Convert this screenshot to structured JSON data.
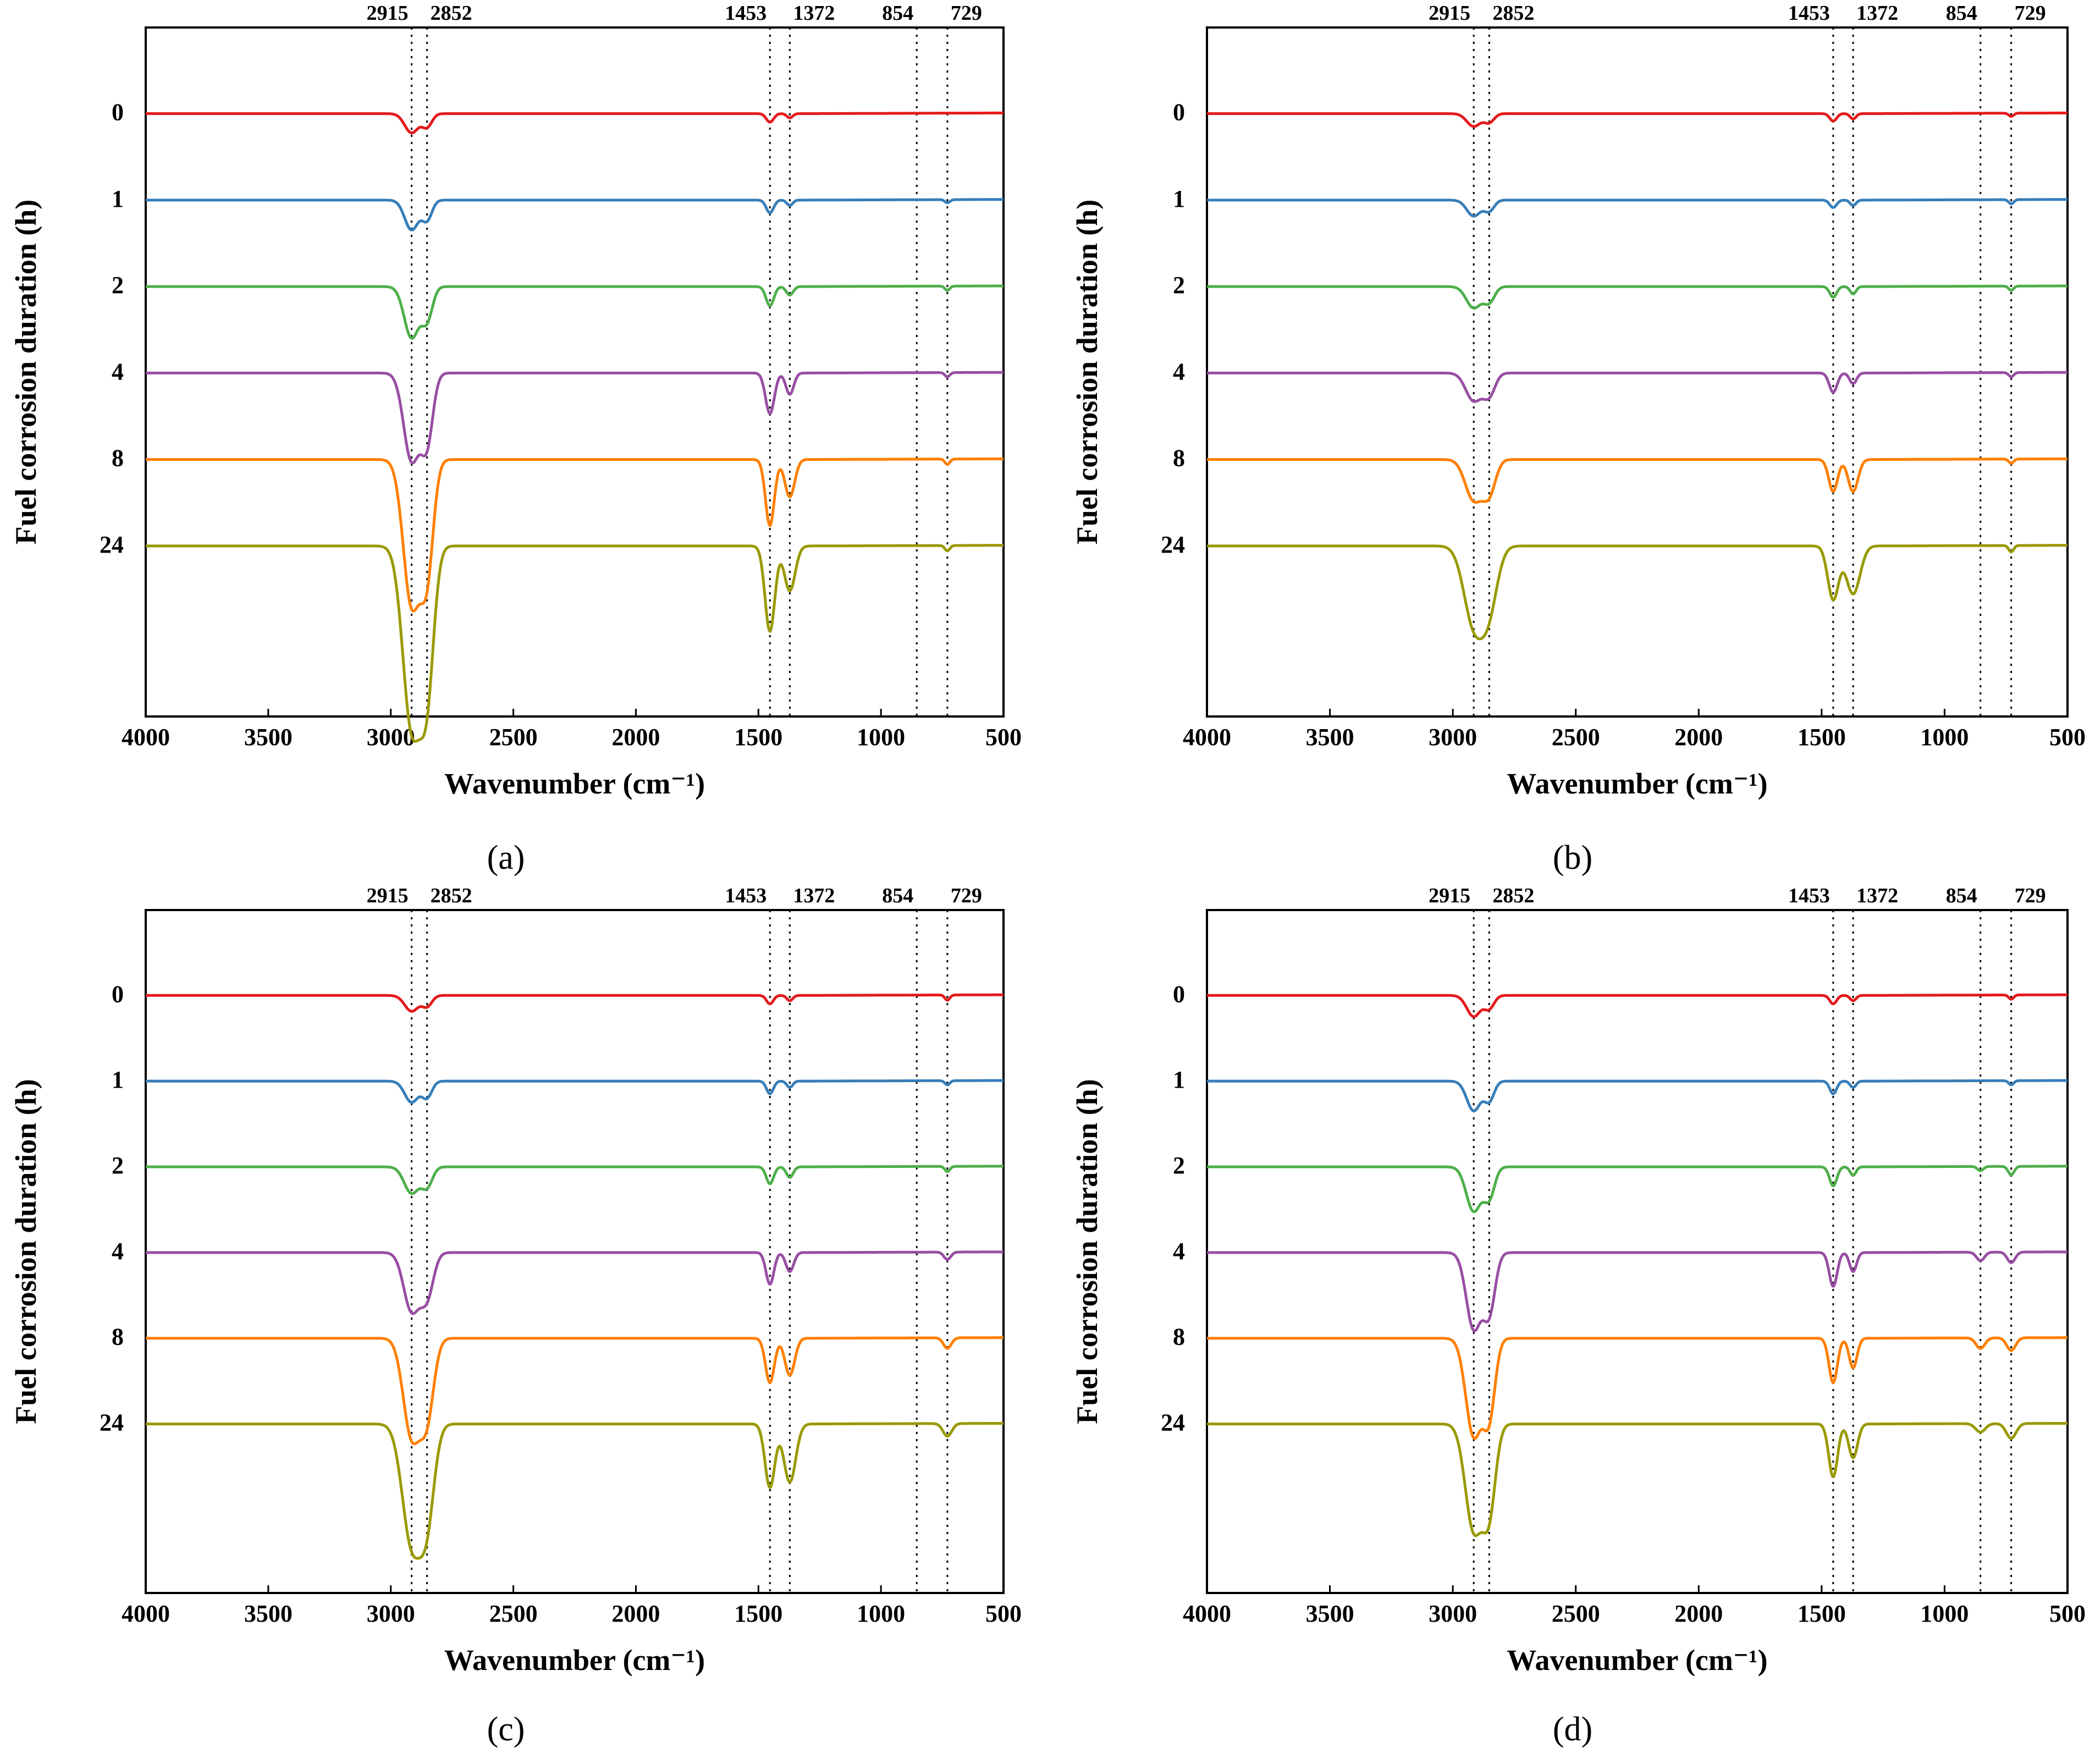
{
  "chart_data": [
    {
      "panel": "a",
      "panel_caption": "(a)",
      "type": "line",
      "xlabel": "Wavenumber (cm⁻¹)",
      "ylabel": "Fuel corrosion duration (h)",
      "xlim": [
        4000,
        500
      ],
      "x_ticks": [
        "4000",
        "3500",
        "3000",
        "2500",
        "2000",
        "1500",
        "1000",
        "500"
      ],
      "peak_markers": [
        2915,
        2852,
        1453,
        1372,
        854,
        729
      ],
      "peak_labels": [
        "2915",
        "2852",
        "1453",
        "1372",
        "854",
        "729"
      ],
      "series": [
        {
          "name": "0",
          "color": "#e41a1c",
          "offset": 0,
          "peaks": [
            {
              "x": 2915,
              "depth": 0.18,
              "w": 28
            },
            {
              "x": 2852,
              "depth": 0.12,
              "w": 20
            },
            {
              "x": 1453,
              "depth": 0.08,
              "w": 15
            },
            {
              "x": 1372,
              "depth": 0.04,
              "w": 12
            }
          ]
        },
        {
          "name": "1",
          "color": "#377eb8",
          "offset": 1,
          "peaks": [
            {
              "x": 2915,
              "depth": 0.28,
              "w": 28
            },
            {
              "x": 2852,
              "depth": 0.18,
              "w": 20
            },
            {
              "x": 1453,
              "depth": 0.12,
              "w": 15
            },
            {
              "x": 1372,
              "depth": 0.05,
              "w": 12
            },
            {
              "x": 729,
              "depth": 0.03,
              "w": 10
            }
          ]
        },
        {
          "name": "2",
          "color": "#4daf4a",
          "offset": 2,
          "peaks": [
            {
              "x": 2915,
              "depth": 0.48,
              "w": 30
            },
            {
              "x": 2852,
              "depth": 0.3,
              "w": 22
            },
            {
              "x": 1453,
              "depth": 0.18,
              "w": 16
            },
            {
              "x": 1372,
              "depth": 0.08,
              "w": 14
            },
            {
              "x": 729,
              "depth": 0.04,
              "w": 10
            }
          ]
        },
        {
          "name": "4",
          "color": "#984ea3",
          "offset": 3,
          "peaks": [
            {
              "x": 2915,
              "depth": 0.82,
              "w": 32
            },
            {
              "x": 2852,
              "depth": 0.62,
              "w": 24
            },
            {
              "x": 1453,
              "depth": 0.38,
              "w": 18
            },
            {
              "x": 1372,
              "depth": 0.2,
              "w": 16
            },
            {
              "x": 729,
              "depth": 0.04,
              "w": 10
            }
          ]
        },
        {
          "name": "8",
          "color": "#ff7f00",
          "offset": 4,
          "peaks": [
            {
              "x": 2915,
              "depth": 1.35,
              "w": 34
            },
            {
              "x": 2852,
              "depth": 1.0,
              "w": 26
            },
            {
              "x": 1453,
              "depth": 0.62,
              "w": 18
            },
            {
              "x": 1372,
              "depth": 0.35,
              "w": 20
            },
            {
              "x": 729,
              "depth": 0.05,
              "w": 10
            }
          ]
        },
        {
          "name": "24",
          "color": "#999900",
          "offset": 5,
          "peaks": [
            {
              "x": 2915,
              "depth": 1.68,
              "w": 36
            },
            {
              "x": 2852,
              "depth": 1.26,
              "w": 28
            },
            {
              "x": 1453,
              "depth": 0.8,
              "w": 20
            },
            {
              "x": 1372,
              "depth": 0.42,
              "w": 22
            },
            {
              "x": 729,
              "depth": 0.05,
              "w": 10
            }
          ]
        }
      ]
    },
    {
      "panel": "b",
      "panel_caption": "(b)",
      "type": "line",
      "xlabel": "Wavenumber (cm⁻¹)",
      "ylabel": "Fuel corrosion duration (h)",
      "xlim": [
        4000,
        500
      ],
      "x_ticks": [
        "4000",
        "3500",
        "3000",
        "2500",
        "2000",
        "1500",
        "1000",
        "500"
      ],
      "peak_markers": [
        2915,
        2852,
        1453,
        1372,
        854,
        729
      ],
      "peak_labels": [
        "2915",
        "2852",
        "1453",
        "1372",
        "854",
        "729"
      ],
      "series": [
        {
          "name": "0",
          "color": "#e41a1c",
          "offset": 0,
          "peaks": [
            {
              "x": 2915,
              "depth": 0.12,
              "w": 28
            },
            {
              "x": 2852,
              "depth": 0.08,
              "w": 20
            },
            {
              "x": 1453,
              "depth": 0.07,
              "w": 14
            },
            {
              "x": 1372,
              "depth": 0.05,
              "w": 12
            },
            {
              "x": 729,
              "depth": 0.03,
              "w": 10
            }
          ]
        },
        {
          "name": "1",
          "color": "#377eb8",
          "offset": 1,
          "peaks": [
            {
              "x": 2915,
              "depth": 0.15,
              "w": 28
            },
            {
              "x": 2852,
              "depth": 0.1,
              "w": 20
            },
            {
              "x": 1453,
              "depth": 0.07,
              "w": 14
            },
            {
              "x": 1372,
              "depth": 0.05,
              "w": 12
            },
            {
              "x": 729,
              "depth": 0.04,
              "w": 10
            }
          ]
        },
        {
          "name": "2",
          "color": "#4daf4a",
          "offset": 2,
          "peaks": [
            {
              "x": 2915,
              "depth": 0.2,
              "w": 30
            },
            {
              "x": 2852,
              "depth": 0.14,
              "w": 22
            },
            {
              "x": 1453,
              "depth": 0.1,
              "w": 14
            },
            {
              "x": 1372,
              "depth": 0.07,
              "w": 12
            },
            {
              "x": 729,
              "depth": 0.04,
              "w": 10
            }
          ]
        },
        {
          "name": "4",
          "color": "#984ea3",
          "offset": 3,
          "peaks": [
            {
              "x": 2915,
              "depth": 0.26,
              "w": 32
            },
            {
              "x": 2852,
              "depth": 0.2,
              "w": 24
            },
            {
              "x": 1453,
              "depth": 0.18,
              "w": 16
            },
            {
              "x": 1372,
              "depth": 0.1,
              "w": 14
            },
            {
              "x": 729,
              "depth": 0.04,
              "w": 10
            }
          ]
        },
        {
          "name": "8",
          "color": "#ff7f00",
          "offset": 4,
          "peaks": [
            {
              "x": 2915,
              "depth": 0.38,
              "w": 34
            },
            {
              "x": 2852,
              "depth": 0.3,
              "w": 26
            },
            {
              "x": 1453,
              "depth": 0.3,
              "w": 18
            },
            {
              "x": 1372,
              "depth": 0.3,
              "w": 20
            },
            {
              "x": 729,
              "depth": 0.04,
              "w": 10
            }
          ]
        },
        {
          "name": "24",
          "color": "#999900",
          "offset": 5,
          "peaks": [
            {
              "x": 2915,
              "depth": 0.72,
              "w": 40
            },
            {
              "x": 2852,
              "depth": 0.52,
              "w": 34
            },
            {
              "x": 1453,
              "depth": 0.5,
              "w": 22
            },
            {
              "x": 1372,
              "depth": 0.45,
              "w": 28
            },
            {
              "x": 729,
              "depth": 0.06,
              "w": 10
            }
          ]
        }
      ]
    },
    {
      "panel": "c",
      "panel_caption": "(c)",
      "type": "line",
      "xlabel": "Wavenumber (cm⁻¹)",
      "ylabel": "Fuel corrosion duration (h)",
      "xlim": [
        4000,
        500
      ],
      "x_ticks": [
        "4000",
        "3500",
        "3000",
        "2500",
        "2000",
        "1500",
        "1000",
        "500"
      ],
      "peak_markers": [
        2915,
        2852,
        1453,
        1372,
        854,
        729
      ],
      "peak_labels": [
        "2915",
        "2852",
        "1453",
        "1372",
        "854",
        "729"
      ],
      "series": [
        {
          "name": "0",
          "color": "#e41a1c",
          "offset": 0,
          "peaks": [
            {
              "x": 2915,
              "depth": 0.15,
              "w": 28
            },
            {
              "x": 2852,
              "depth": 0.1,
              "w": 20
            },
            {
              "x": 1453,
              "depth": 0.08,
              "w": 14
            },
            {
              "x": 1372,
              "depth": 0.05,
              "w": 12
            },
            {
              "x": 729,
              "depth": 0.05,
              "w": 10
            }
          ]
        },
        {
          "name": "1",
          "color": "#377eb8",
          "offset": 1,
          "peaks": [
            {
              "x": 2915,
              "depth": 0.2,
              "w": 28
            },
            {
              "x": 2852,
              "depth": 0.15,
              "w": 20
            },
            {
              "x": 1453,
              "depth": 0.12,
              "w": 14
            },
            {
              "x": 1372,
              "depth": 0.06,
              "w": 12
            },
            {
              "x": 729,
              "depth": 0.04,
              "w": 10
            }
          ]
        },
        {
          "name": "2",
          "color": "#4daf4a",
          "offset": 2,
          "peaks": [
            {
              "x": 2915,
              "depth": 0.25,
              "w": 30
            },
            {
              "x": 2852,
              "depth": 0.18,
              "w": 22
            },
            {
              "x": 1453,
              "depth": 0.16,
              "w": 15
            },
            {
              "x": 1372,
              "depth": 0.1,
              "w": 14
            },
            {
              "x": 729,
              "depth": 0.05,
              "w": 10
            }
          ]
        },
        {
          "name": "4",
          "color": "#984ea3",
          "offset": 3,
          "peaks": [
            {
              "x": 2915,
              "depth": 0.55,
              "w": 32
            },
            {
              "x": 2852,
              "depth": 0.4,
              "w": 26
            },
            {
              "x": 1453,
              "depth": 0.3,
              "w": 16
            },
            {
              "x": 1372,
              "depth": 0.18,
              "w": 16
            },
            {
              "x": 729,
              "depth": 0.07,
              "w": 14
            }
          ]
        },
        {
          "name": "8",
          "color": "#ff7f00",
          "offset": 4,
          "peaks": [
            {
              "x": 2915,
              "depth": 0.92,
              "w": 34
            },
            {
              "x": 2852,
              "depth": 0.7,
              "w": 28
            },
            {
              "x": 1453,
              "depth": 0.42,
              "w": 18
            },
            {
              "x": 1372,
              "depth": 0.35,
              "w": 20
            },
            {
              "x": 729,
              "depth": 0.1,
              "w": 16
            }
          ]
        },
        {
          "name": "24",
          "color": "#999900",
          "offset": 5,
          "peaks": [
            {
              "x": 2915,
              "depth": 1.12,
              "w": 38
            },
            {
              "x": 2852,
              "depth": 0.82,
              "w": 30
            },
            {
              "x": 1453,
              "depth": 0.6,
              "w": 20
            },
            {
              "x": 1372,
              "depth": 0.55,
              "w": 24
            },
            {
              "x": 729,
              "depth": 0.12,
              "w": 18
            }
          ]
        }
      ]
    },
    {
      "panel": "d",
      "panel_caption": "(d)",
      "type": "line",
      "xlabel": "Wavenumber (cm⁻¹)",
      "ylabel": "Fuel corrosion duration (h)",
      "xlim": [
        4000,
        500
      ],
      "x_ticks": [
        "4000",
        "3500",
        "3000",
        "2500",
        "2000",
        "1500",
        "1000",
        "500"
      ],
      "peak_markers": [
        2915,
        2852,
        1453,
        1372,
        854,
        729
      ],
      "peak_labels": [
        "2915",
        "2852",
        "1453",
        "1372",
        "854",
        "729"
      ],
      "series": [
        {
          "name": "0",
          "color": "#e41a1c",
          "offset": 0,
          "peaks": [
            {
              "x": 2915,
              "depth": 0.2,
              "w": 28
            },
            {
              "x": 2852,
              "depth": 0.12,
              "w": 20
            },
            {
              "x": 1453,
              "depth": 0.08,
              "w": 14
            },
            {
              "x": 1372,
              "depth": 0.05,
              "w": 12
            },
            {
              "x": 729,
              "depth": 0.04,
              "w": 10
            }
          ]
        },
        {
          "name": "1",
          "color": "#377eb8",
          "offset": 1,
          "peaks": [
            {
              "x": 2915,
              "depth": 0.28,
              "w": 28
            },
            {
              "x": 2852,
              "depth": 0.18,
              "w": 20
            },
            {
              "x": 1453,
              "depth": 0.12,
              "w": 14
            },
            {
              "x": 1372,
              "depth": 0.06,
              "w": 12
            },
            {
              "x": 729,
              "depth": 0.04,
              "w": 10
            }
          ]
        },
        {
          "name": "2",
          "color": "#4daf4a",
          "offset": 2,
          "peaks": [
            {
              "x": 2915,
              "depth": 0.42,
              "w": 30
            },
            {
              "x": 2852,
              "depth": 0.28,
              "w": 22
            },
            {
              "x": 1453,
              "depth": 0.18,
              "w": 15
            },
            {
              "x": 1372,
              "depth": 0.08,
              "w": 12
            },
            {
              "x": 854,
              "depth": 0.04,
              "w": 12
            },
            {
              "x": 729,
              "depth": 0.08,
              "w": 12
            }
          ]
        },
        {
          "name": "4",
          "color": "#984ea3",
          "offset": 3,
          "peaks": [
            {
              "x": 2915,
              "depth": 0.72,
              "w": 30
            },
            {
              "x": 2852,
              "depth": 0.55,
              "w": 24
            },
            {
              "x": 1453,
              "depth": 0.32,
              "w": 16
            },
            {
              "x": 1372,
              "depth": 0.18,
              "w": 14
            },
            {
              "x": 854,
              "depth": 0.08,
              "w": 16
            },
            {
              "x": 729,
              "depth": 0.1,
              "w": 16
            }
          ]
        },
        {
          "name": "8",
          "color": "#ff7f00",
          "offset": 4,
          "peaks": [
            {
              "x": 2915,
              "depth": 0.92,
              "w": 32
            },
            {
              "x": 2852,
              "depth": 0.7,
              "w": 24
            },
            {
              "x": 1453,
              "depth": 0.42,
              "w": 17
            },
            {
              "x": 1372,
              "depth": 0.28,
              "w": 16
            },
            {
              "x": 854,
              "depth": 0.1,
              "w": 18
            },
            {
              "x": 729,
              "depth": 0.12,
              "w": 18
            }
          ]
        },
        {
          "name": "24",
          "color": "#999900",
          "offset": 5,
          "peaks": [
            {
              "x": 2915,
              "depth": 1.0,
              "w": 34
            },
            {
              "x": 2852,
              "depth": 0.78,
              "w": 26
            },
            {
              "x": 1453,
              "depth": 0.5,
              "w": 18
            },
            {
              "x": 1372,
              "depth": 0.32,
              "w": 18
            },
            {
              "x": 854,
              "depth": 0.08,
              "w": 20
            },
            {
              "x": 729,
              "depth": 0.14,
              "w": 20
            }
          ]
        }
      ]
    }
  ]
}
